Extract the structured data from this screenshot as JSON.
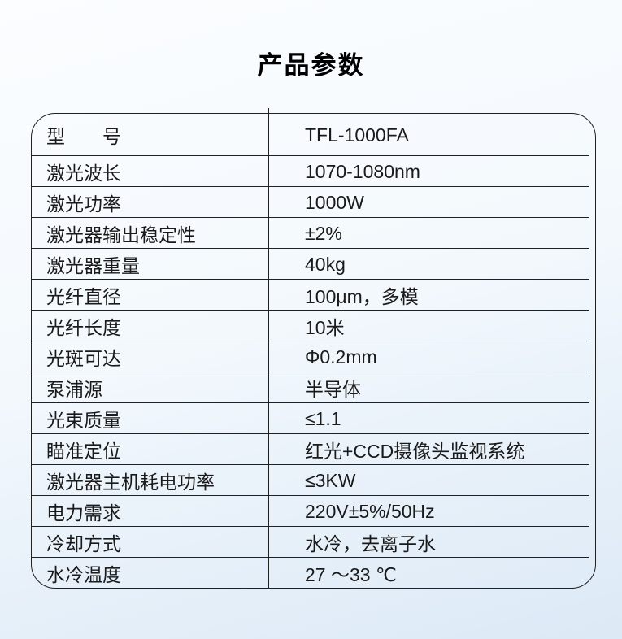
{
  "page_title": "产品参数",
  "colors": {
    "border": "#202020",
    "text": "#1a1a1a",
    "background_top": "#fbfdff",
    "background_bottom": "#dce9f6"
  },
  "table": {
    "rows": [
      {
        "label": "型　　号",
        "value": "TFL-1000FA"
      },
      {
        "label": "激光波长",
        "value": "1070-1080nm"
      },
      {
        "label": "激光功率",
        "value": "1000W"
      },
      {
        "label": "激光器输出稳定性",
        "value": "±2%"
      },
      {
        "label": "激光器重量",
        "value": "40kg"
      },
      {
        "label": "光纤直径",
        "value": "100μm，多模"
      },
      {
        "label": "光纤长度",
        "value": "10米"
      },
      {
        "label": "光斑可达",
        "value": "Φ0.2mm"
      },
      {
        "label": "泵浦源",
        "value": "半导体"
      },
      {
        "label": "光束质量",
        "value": "≤1.1"
      },
      {
        "label": "瞄准定位",
        "value": "红光+CCD摄像头监视系统"
      },
      {
        "label": "激光器主机耗电功率",
        "value": "≤3KW"
      },
      {
        "label": "电力需求",
        "value": "220V±5%/50Hz"
      },
      {
        "label": "冷却方式",
        "value": "水冷，去离子水"
      },
      {
        "label": "水冷温度",
        "value": "27 ～33 ℃"
      }
    ]
  }
}
